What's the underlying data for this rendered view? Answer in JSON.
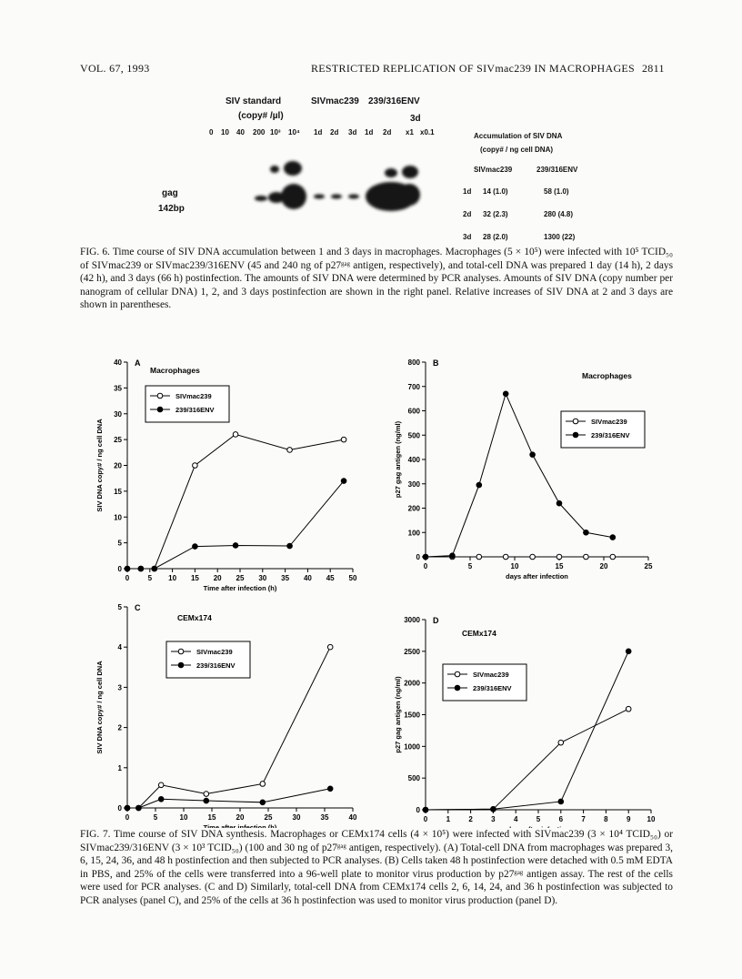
{
  "header": {
    "volume": "VOL. 67, 1993",
    "running_title": "RESTRICTED REPLICATION OF SIVmac239 IN MACROPHAGES",
    "page": "2811"
  },
  "figure6": {
    "gel": {
      "standard_label": "SIV standard",
      "standard_units": "(copy# /µl)",
      "samples": [
        "SIVmac239",
        "239/316ENV"
      ],
      "lanes": [
        "0",
        "10",
        "40",
        "200",
        "10³",
        "10⁴",
        "1d",
        "2d",
        "3d",
        "1d",
        "2d",
        "x1",
        "x0.1"
      ],
      "lane_group": "3d",
      "band": "gag",
      "band_size": "142bp"
    },
    "table": {
      "title": "Accumulation of SIV DNA",
      "subtitle": "(copy# / ng cell DNA)",
      "columns": [
        "SIVmac239",
        "239/316ENV"
      ],
      "rows": [
        [
          "1d",
          "14 (1.0)",
          "58 (1.0)"
        ],
        [
          "2d",
          "32 (2.3)",
          "280 (4.8)"
        ],
        [
          "3d",
          "28 (2.0)",
          "1300 (22)"
        ]
      ]
    },
    "caption": "FIG. 6. Time course of SIV DNA accumulation between 1 and 3 days in macrophages. Macrophages (5 × 10⁵) were infected with 10⁵ TCID₅₀ of SIVmac239 or SIVmac239/316ENV (45 and 240 ng of p27ᵍᵃᵍ antigen, respectively), and total-cell DNA was prepared 1 day (14 h), 2 days (42 h), and 3 days (66 h) postinfection. The amounts of SIV DNA were determined by PCR analyses. Amounts of SIV DNA (copy number per nanogram of cellular DNA) 1, 2, and 3 days postinfection are shown in the right panel. Relative increases of SIV DNA at 2 and 3 days are shown in parentheses."
  },
  "chart_data": [
    {
      "type": "line",
      "panel": "A",
      "title": "Macrophages",
      "x_label": "Time after infection (h)",
      "y_label": "SIV DNA copy# / ng cell DNA",
      "x": [
        0,
        3,
        6,
        15,
        24,
        36,
        48
      ],
      "series": [
        {
          "name": "SIVmac239",
          "color": "#000000",
          "marker": "open",
          "values": [
            0,
            0,
            0,
            20,
            26,
            23,
            25
          ]
        },
        {
          "name": "239/316ENV",
          "color": "#000000",
          "marker": "filled",
          "values": [
            0,
            0,
            0,
            4.3,
            4.5,
            4.4,
            17
          ]
        }
      ],
      "xlim": [
        0,
        50
      ],
      "xticks": [
        0,
        5,
        10,
        15,
        20,
        25,
        30,
        35,
        40,
        45,
        50
      ],
      "ylim": [
        0,
        40
      ],
      "yticks": [
        0,
        5,
        10,
        15,
        20,
        25,
        30,
        35,
        40
      ],
      "legend": "upper left"
    },
    {
      "type": "line",
      "panel": "B",
      "title": "Macrophages",
      "x_label": "days after infection",
      "y_label": "p27 gag antigen (ng/ml)",
      "x": [
        0,
        3,
        6,
        9,
        12,
        15,
        18,
        21
      ],
      "series": [
        {
          "name": "SIVmac239",
          "color": "#000000",
          "marker": "open",
          "values": [
            0,
            0,
            0,
            0,
            0,
            0,
            0,
            0
          ]
        },
        {
          "name": "239/316ENV",
          "color": "#000000",
          "marker": "filled",
          "values": [
            0,
            5,
            295,
            670,
            420,
            220,
            100,
            80
          ]
        }
      ],
      "xlim": [
        0,
        25
      ],
      "xticks": [
        0,
        5,
        10,
        15,
        20,
        25
      ],
      "ylim": [
        0,
        800
      ],
      "yticks": [
        0,
        100,
        200,
        300,
        400,
        500,
        600,
        700,
        800
      ],
      "legend": "upper right"
    },
    {
      "type": "line",
      "panel": "C",
      "title": "CEMx174",
      "x_label": "Time after infection (h)",
      "y_label": "SIV DNA copy# / ng cell DNA",
      "x": [
        0,
        2,
        6,
        14,
        24,
        36
      ],
      "series": [
        {
          "name": "SIVmac239",
          "color": "#000000",
          "marker": "open",
          "values": [
            0,
            0,
            0.57,
            0.35,
            0.6,
            4.0
          ]
        },
        {
          "name": "239/316ENV",
          "color": "#000000",
          "marker": "filled",
          "values": [
            0,
            0,
            0.22,
            0.18,
            0.14,
            0.48
          ]
        }
      ],
      "xlim": [
        0,
        40
      ],
      "xticks": [
        0,
        5,
        10,
        15,
        20,
        25,
        30,
        35,
        40
      ],
      "ylim": [
        0,
        5
      ],
      "yticks": [
        0,
        1,
        2,
        3,
        4,
        5
      ],
      "legend": "upper left"
    },
    {
      "type": "line",
      "panel": "D",
      "title": "CEMx174",
      "x_label": "days after infection",
      "y_label": "p27 gag antigen (ng/ml)",
      "x": [
        0,
        3,
        6,
        9
      ],
      "series": [
        {
          "name": "SIVmac239",
          "color": "#000000",
          "marker": "open",
          "values": [
            0,
            10,
            1060,
            1590
          ]
        },
        {
          "name": "239/316ENV",
          "color": "#000000",
          "marker": "filled",
          "values": [
            0,
            10,
            130,
            2500
          ]
        }
      ],
      "xlim": [
        0,
        10
      ],
      "xticks": [
        0,
        1,
        2,
        3,
        4,
        5,
        6,
        7,
        8,
        9,
        10
      ],
      "ylim": [
        0,
        3000
      ],
      "yticks": [
        0,
        500,
        1000,
        1500,
        2000,
        2500,
        3000
      ],
      "legend": "upper left"
    }
  ],
  "figure7": {
    "caption": "FIG. 7. Time course of SIV DNA synthesis. Macrophages or CEMx174 cells (4 × 10⁵) were infected with SIVmac239 (3 × 10⁴ TCID₅₀) or SIVmac239/316ENV (3 × 10³ TCID₅₀) (100 and 30 ng of p27ᵍᵃᵍ antigen, respectively). (A) Total-cell DNA from macrophages was prepared 3, 6, 15, 24, 36, and 48 h postinfection and then subjected to PCR analyses. (B) Cells taken 48 h postinfection were detached with 0.5 mM EDTA in PBS, and 25% of the cells were transferred into a 96-well plate to monitor virus production by p27ᵍᵃᵍ antigen assay. The rest of the cells were used for PCR analyses. (C and D) Similarly, total-cell DNA from CEMx174 cells 2, 6, 14, 24, and 36 h postinfection was subjected to PCR analyses (panel C), and 25% of the cells at 36 h postinfection was used to monitor virus production (panel D)."
  }
}
